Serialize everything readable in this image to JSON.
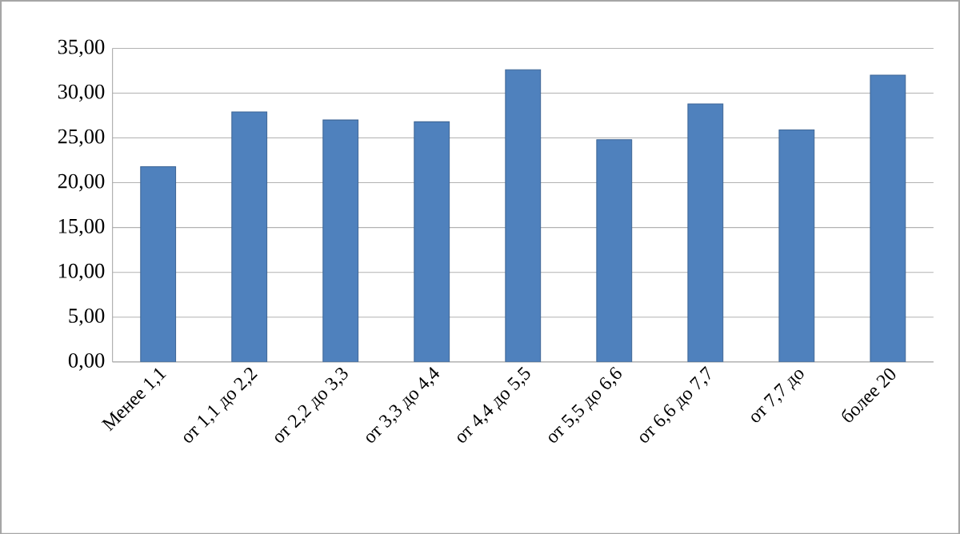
{
  "chart_data": {
    "type": "bar",
    "categories": [
      "Менее 1,1",
      "от 1,1 до 2,2",
      "от 2,2 до 3,3",
      "от 3,3 до 4,4",
      "от 4,4 до 5,5",
      "от 5,5 до 6,6",
      "от 6,6 до 7,7",
      "от 7,7 до",
      "более 20"
    ],
    "values": [
      21.8,
      27.9,
      27.0,
      26.8,
      32.6,
      24.8,
      28.8,
      25.9,
      32.0
    ],
    "color": "#4f81bd",
    "ylim": [
      0,
      35
    ],
    "yticks": [
      {
        "value": 0,
        "label": "0,00"
      },
      {
        "value": 5,
        "label": "5,00"
      },
      {
        "value": 10,
        "label": "10,00"
      },
      {
        "value": 15,
        "label": "15,00"
      },
      {
        "value": 20,
        "label": "20,00"
      },
      {
        "value": 25,
        "label": "25,00"
      },
      {
        "value": 30,
        "label": "30,00"
      },
      {
        "value": 35,
        "label": "35,00"
      }
    ],
    "grid": "y"
  }
}
